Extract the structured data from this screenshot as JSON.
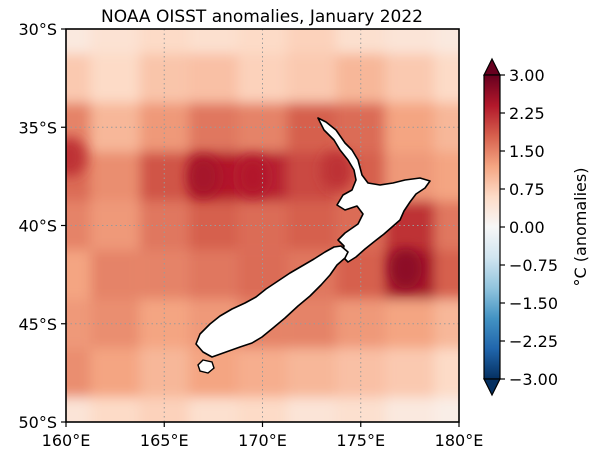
{
  "chart_data": {
    "type": "heatmap",
    "title": "NOAA OISST anomalies, January 2022",
    "xlabel": "",
    "ylabel": "",
    "x_ticks": [
      {
        "value": 160,
        "label": "160°E"
      },
      {
        "value": 165,
        "label": "165°E"
      },
      {
        "value": 170,
        "label": "170°E"
      },
      {
        "value": 175,
        "label": "175°E"
      },
      {
        "value": 180,
        "label": "180°E"
      }
    ],
    "y_ticks": [
      {
        "value": -30,
        "label": "30°S"
      },
      {
        "value": -35,
        "label": "35°S"
      },
      {
        "value": -40,
        "label": "40°S"
      },
      {
        "value": -45,
        "label": "45°S"
      },
      {
        "value": -50,
        "label": "50°S"
      }
    ],
    "xlim": [
      160,
      180
    ],
    "ylim": [
      -50,
      -30
    ],
    "colorbar": {
      "label": "°C (anomalies)",
      "range": [
        -3.0,
        3.0
      ],
      "extend": "both",
      "ticks": [
        {
          "value": 3.0,
          "label": "3.00"
        },
        {
          "value": 2.25,
          "label": "2.25"
        },
        {
          "value": 1.5,
          "label": "1.50"
        },
        {
          "value": 0.75,
          "label": "0.75"
        },
        {
          "value": 0.0,
          "label": "0.00"
        },
        {
          "value": -0.75,
          "label": "−0.75"
        },
        {
          "value": -1.5,
          "label": "−1.50"
        },
        {
          "value": -2.25,
          "label": "−2.25"
        },
        {
          "value": -3.0,
          "label": "−3.00"
        }
      ]
    },
    "colormap": "RdBu_r",
    "colors": [
      "#053061",
      "#2166ac",
      "#4393c3",
      "#92c5de",
      "#d1e5f0",
      "#f7f7f7",
      "#fddbc7",
      "#f4a582",
      "#d6604d",
      "#b2182b",
      "#67001f"
    ],
    "anomaly_grid": {
      "lon_step": 2.5,
      "lat_step": 2.5,
      "lats": [
        -30,
        -32.5,
        -35,
        -37.5,
        -40,
        -42.5,
        -45,
        -47.5,
        -50
      ],
      "lons": [
        160,
        162.5,
        165,
        167.5,
        170,
        172.5,
        175,
        177.5,
        180
      ],
      "values": [
        [
          0.3,
          0.45,
          0.6,
          0.5,
          0.6,
          0.7,
          0.5,
          0.4,
          0.3
        ],
        [
          0.8,
          0.6,
          0.85,
          0.9,
          0.7,
          0.8,
          1.0,
          0.8,
          0.6
        ],
        [
          1.5,
          1.0,
          1.3,
          1.6,
          1.5,
          1.8,
          1.7,
          1.2,
          1.0
        ],
        [
          1.7,
          1.4,
          1.9,
          2.4,
          2.3,
          2.0,
          1.8,
          1.3,
          1.2
        ],
        [
          1.5,
          1.3,
          1.6,
          1.8,
          1.7,
          1.8,
          1.7,
          2.2,
          1.6
        ],
        [
          1.2,
          1.5,
          1.5,
          1.6,
          1.7,
          1.6,
          1.8,
          2.5,
          1.8
        ],
        [
          1.3,
          1.4,
          1.2,
          1.3,
          1.5,
          1.5,
          1.3,
          1.2,
          1.0
        ],
        [
          1.4,
          1.2,
          1.0,
          1.2,
          1.1,
          1.0,
          0.9,
          0.8,
          0.6
        ],
        [
          0.4,
          0.6,
          0.7,
          0.5,
          0.6,
          0.4,
          0.5,
          0.3,
          0.2
        ]
      ]
    },
    "warm_spots": [
      {
        "lon": 167.0,
        "lat": -37.5,
        "value": 2.5
      },
      {
        "lon": 169.5,
        "lat": -37.5,
        "value": 2.4
      },
      {
        "lon": 177.3,
        "lat": -42.2,
        "value": 2.7
      },
      {
        "lon": 160.2,
        "lat": -36.5,
        "value": 2.2
      },
      {
        "lon": 173.8,
        "lat": -37.2,
        "value": 2.2
      }
    ]
  }
}
